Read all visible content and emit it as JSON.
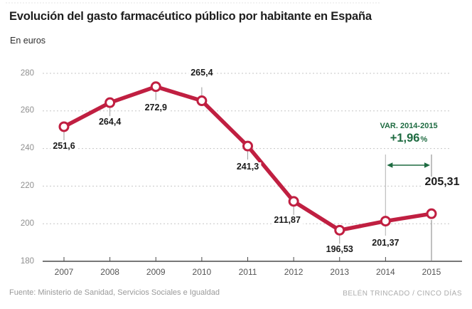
{
  "chart_data": {
    "type": "line",
    "title": "Evolución del gasto farmacéutico público por habitante en España",
    "subtitle": "En euros",
    "x": [
      2007,
      2008,
      2009,
      2010,
      2011,
      2012,
      2013,
      2014,
      2015
    ],
    "values": [
      251.6,
      264.4,
      272.9,
      265.4,
      241.3,
      211.87,
      196.53,
      201.37,
      205.31
    ],
    "point_labels": [
      "251,6",
      "264,4",
      "272,9",
      "265,4",
      "241,3",
      "211,87",
      "196,53",
      "201,37",
      "205,31"
    ],
    "ylim": [
      180,
      280
    ],
    "yticks": [
      180,
      200,
      220,
      240,
      260,
      280
    ],
    "grid": "horizontal-dotted",
    "legend": "none",
    "line_color": "#c01f41",
    "marker_style": "open-circle-white",
    "annotation": {
      "label": "VAR. 2014-2015",
      "value": "+1,96",
      "unit": "%",
      "from_year": 2014,
      "to_year": 2015,
      "color": "#1e6b41"
    }
  },
  "footer": {
    "source": "Fuente: Ministerio de Sanidad, Servicios Sociales e Igualdad",
    "credit": "BELÉN TRINCADO / CINCO DÍAS"
  },
  "colors": {
    "axis": "#4a4a4a",
    "grid": "#c6c6c6",
    "connector": "#9a9a9a",
    "var_line_from": "#c2c2c2",
    "var_line_to": "#808080",
    "top_rule": "#e4e4e4"
  }
}
